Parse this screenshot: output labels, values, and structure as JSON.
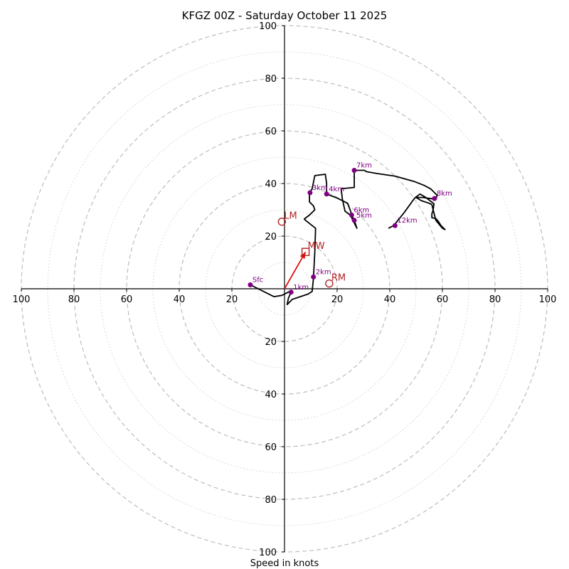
{
  "chart_data": {
    "type": "hodograph",
    "title": "KFGZ 00Z - Saturday October 11 2025",
    "xlabel": "Speed in knots",
    "rings_major": [
      20,
      40,
      60,
      80,
      100
    ],
    "rings_minor": [
      10,
      30,
      50,
      70,
      90
    ],
    "xlim": [
      -100,
      100
    ],
    "ylim": [
      -100,
      100
    ],
    "x_ticks": [
      {
        "value": -100,
        "label": "100"
      },
      {
        "value": -80,
        "label": "80"
      },
      {
        "value": -60,
        "label": "60"
      },
      {
        "value": -40,
        "label": "40"
      },
      {
        "value": -20,
        "label": "20"
      },
      {
        "value": 20,
        "label": "20"
      },
      {
        "value": 40,
        "label": "40"
      },
      {
        "value": 60,
        "label": "60"
      },
      {
        "value": 80,
        "label": "80"
      },
      {
        "value": 100,
        "label": "100"
      }
    ],
    "y_ticks": [
      {
        "value": 100,
        "label": "100"
      },
      {
        "value": 80,
        "label": "80"
      },
      {
        "value": 60,
        "label": "60"
      },
      {
        "value": 40,
        "label": "40"
      },
      {
        "value": 20,
        "label": "20"
      },
      {
        "value": -20,
        "label": "20"
      },
      {
        "value": -40,
        "label": "40"
      },
      {
        "value": -60,
        "label": "60"
      },
      {
        "value": -80,
        "label": "80"
      },
      {
        "value": -100,
        "label": "100"
      }
    ],
    "line_color": "#000000",
    "marker_color": "#800080",
    "storm_color": "#b22222",
    "hodograph": [
      [
        -13,
        1.5
      ],
      [
        -10,
        0
      ],
      [
        -7,
        -1.5
      ],
      [
        -4,
        -3
      ],
      [
        -1,
        -2.5
      ],
      [
        2,
        -1
      ],
      [
        2.5,
        -1.3
      ],
      [
        1.5,
        -3.5
      ],
      [
        1,
        -6
      ],
      [
        3,
        -4
      ],
      [
        6,
        -3
      ],
      [
        9,
        -2
      ],
      [
        10.5,
        -1
      ],
      [
        11,
        4
      ],
      [
        11.5,
        14
      ],
      [
        11.8,
        23
      ],
      [
        8,
        26
      ],
      [
        7.5,
        26.5
      ],
      [
        9.5,
        28
      ],
      [
        11.5,
        30
      ],
      [
        11,
        31.5
      ],
      [
        9.5,
        33
      ],
      [
        9.5,
        36.5
      ],
      [
        10.5,
        38
      ],
      [
        11.5,
        43
      ],
      [
        15.5,
        43.5
      ],
      [
        16,
        40
      ],
      [
        16,
        36
      ],
      [
        20,
        34.5
      ],
      [
        24,
        32.5
      ],
      [
        26,
        27
      ],
      [
        26.5,
        26
      ],
      [
        27.5,
        23
      ],
      [
        25,
        28
      ],
      [
        23,
        29.5
      ],
      [
        22,
        34
      ],
      [
        21.5,
        38
      ],
      [
        26.5,
        38.5
      ],
      [
        26.5,
        45
      ],
      [
        30.5,
        45
      ],
      [
        31,
        44.5
      ],
      [
        35,
        43.8
      ],
      [
        42,
        42.8
      ],
      [
        49.5,
        40.7
      ],
      [
        53,
        39.3
      ],
      [
        55.5,
        38
      ],
      [
        58,
        35.5
      ],
      [
        57.5,
        34
      ],
      [
        52.5,
        34.7
      ],
      [
        50,
        34.7
      ],
      [
        52,
        33.5
      ],
      [
        55,
        32.5
      ],
      [
        56,
        32
      ],
      [
        56.5,
        30
      ],
      [
        56,
        28.5
      ],
      [
        56,
        27
      ],
      [
        57.5,
        26.7
      ],
      [
        58.5,
        25.5
      ],
      [
        59.5,
        24
      ],
      [
        61,
        22.5
      ],
      [
        60,
        23
      ],
      [
        57.5,
        26
      ],
      [
        56.5,
        30
      ],
      [
        56.8,
        32.3
      ],
      [
        53.5,
        34.8
      ],
      [
        51.5,
        36
      ],
      [
        49.5,
        34.5
      ],
      [
        45.5,
        29
      ],
      [
        41.5,
        24
      ],
      [
        39.5,
        23
      ]
    ],
    "height_markers": [
      {
        "label": "Sfc",
        "u": -13,
        "v": 1.5
      },
      {
        "label": "1km",
        "u": 2.5,
        "v": -1.3
      },
      {
        "label": "2km",
        "u": 11,
        "v": 4.5
      },
      {
        "label": "3km",
        "u": 9.7,
        "v": 36.5
      },
      {
        "label": "4km",
        "u": 16,
        "v": 36
      },
      {
        "label": "5km",
        "u": 26.5,
        "v": 26
      },
      {
        "label": "6km",
        "u": 25.5,
        "v": 28
      },
      {
        "label": "7km",
        "u": 26.5,
        "v": 45
      },
      {
        "label": "8km",
        "u": 57,
        "v": 34.3
      },
      {
        "label": "12km",
        "u": 42,
        "v": 24
      }
    ],
    "storm_motion": [
      {
        "label": "LM",
        "u": -1,
        "v": 25.5,
        "shape": "circle"
      },
      {
        "label": "MW",
        "u": 8,
        "v": 14,
        "shape": "square"
      },
      {
        "label": "RM",
        "u": 17,
        "v": 2,
        "shape": "circle"
      }
    ]
  }
}
